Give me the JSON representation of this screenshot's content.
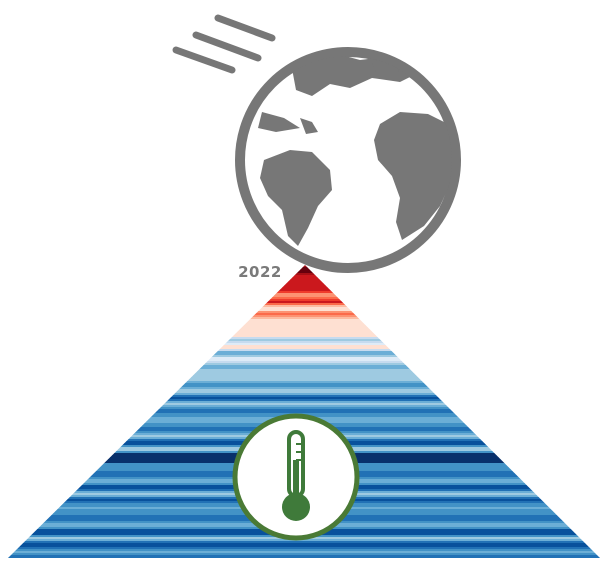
{
  "label": "2022"
}
